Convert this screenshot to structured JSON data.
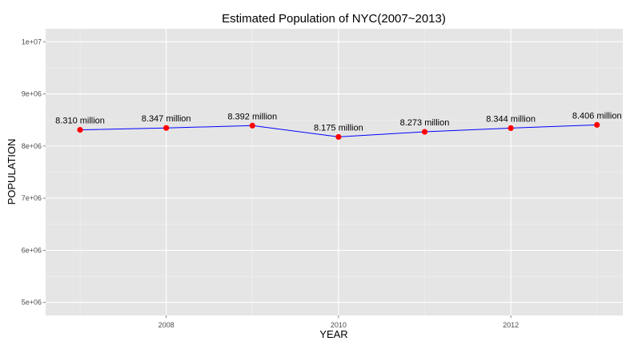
{
  "chart_data": {
    "type": "line",
    "title": "Estimated Population of NYC(2007~2013)",
    "xlabel": "YEAR",
    "ylabel": "POPULATION",
    "x": [
      2007,
      2008,
      2009,
      2010,
      2011,
      2012,
      2013
    ],
    "y": [
      8310000,
      8347000,
      8392000,
      8175000,
      8273000,
      8344000,
      8406000
    ],
    "point_labels": [
      "8.310 million",
      "8.347 million",
      "8.392 million",
      "8.175 million",
      "8.273 million",
      "8.344 million",
      "8.406 million"
    ],
    "xlim": [
      2006.6,
      2013.3
    ],
    "ylim": [
      4750000,
      10250000
    ],
    "x_ticks": [
      2008,
      2010,
      2012
    ],
    "x_tick_labels": [
      "2008",
      "2010",
      "2012"
    ],
    "y_ticks": [
      5000000,
      6000000,
      7000000,
      8000000,
      9000000,
      10000000
    ],
    "y_tick_labels": [
      "5e+06",
      "6e+06",
      "7e+06",
      "8e+06",
      "9e+06",
      "1e+07"
    ],
    "grid": true,
    "legend": "none",
    "colors": {
      "panel_background": "#e5e5e5",
      "grid_major": "#ffffff",
      "grid_minor": "#f2f2f2",
      "line": "#0000ff",
      "points": "#ff0000",
      "tick_text": "#4d4d4d",
      "text": "#000000"
    }
  }
}
